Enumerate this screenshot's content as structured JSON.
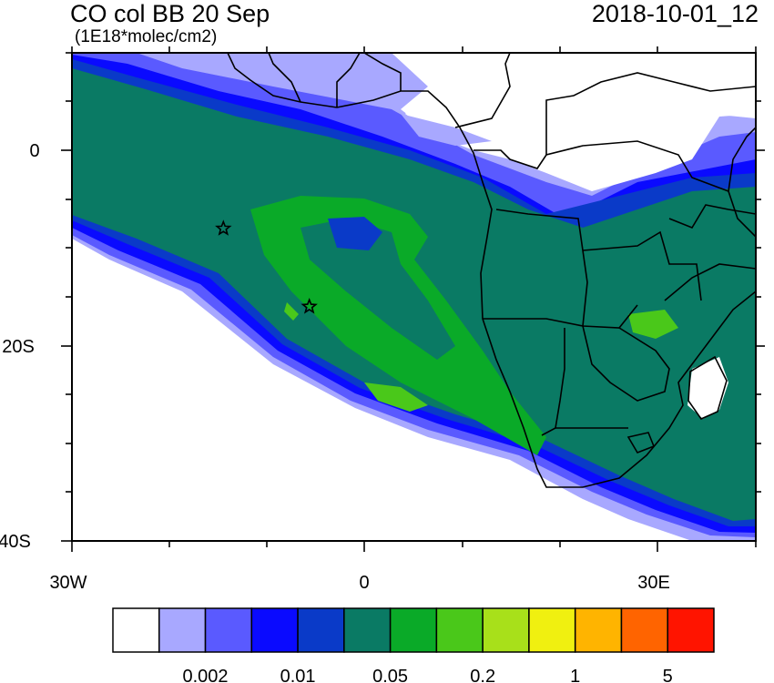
{
  "header": {
    "title": "CO col BB 20 Sep",
    "units": "(1E18*molec/cm2)",
    "datetime": "2018-10-01_12"
  },
  "map": {
    "lon_range": [
      -30,
      40
    ],
    "lat_range": [
      -40,
      10
    ],
    "lon_labels": [
      "30W",
      "0",
      "30E"
    ],
    "lat_labels": [
      "0",
      "20S",
      "40S"
    ],
    "markers": [
      {
        "type": "star",
        "lon": -14.5,
        "lat": -8
      },
      {
        "type": "star",
        "lon": -5.7,
        "lat": -16
      }
    ]
  },
  "colorbar": {
    "colors": [
      "#ffffff",
      "#a8a8ff",
      "#5a5aff",
      "#0a0aff",
      "#0a3ac8",
      "#0a7a64",
      "#0aaa28",
      "#4ac81a",
      "#a8e01a",
      "#f0f010",
      "#ffb400",
      "#ff6400",
      "#ff1400"
    ],
    "tick_labels": [
      "0.002",
      "0.01",
      "0.05",
      "0.2",
      "1",
      "5"
    ]
  }
}
